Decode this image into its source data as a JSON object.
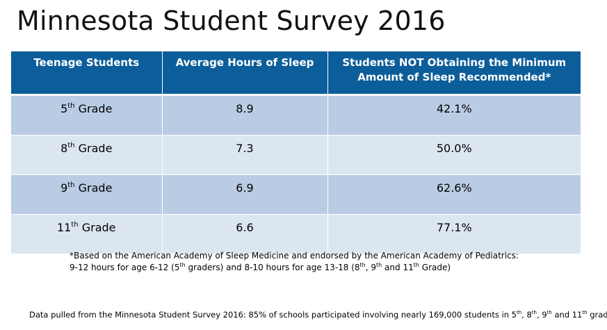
{
  "title": "Minnesota Student Survey 2016",
  "table": {
    "headers": [
      "Teenage Students",
      "Average Hours of Sleep",
      "Students NOT Obtaining the Minimum Amount of Sleep Recommended*"
    ],
    "rows": [
      {
        "grade_num": "5",
        "grade_sup": "th",
        "grade_word": "Grade",
        "hours": "8.9",
        "pct": "42.1%"
      },
      {
        "grade_num": "8",
        "grade_sup": "th",
        "grade_word": "Grade",
        "hours": "7.3",
        "pct": "50.0%"
      },
      {
        "grade_num": "9",
        "grade_sup": "th",
        "grade_word": "Grade",
        "hours": "6.9",
        "pct": "62.6%"
      },
      {
        "grade_num": "11",
        "grade_sup": "th",
        "grade_word": "Grade",
        "hours": "6.6",
        "pct": "77.1%"
      }
    ]
  },
  "footnote": {
    "part1": "*Based on the American Academy of Sleep Medicine and endorsed by the American Academy of Pediatrics: 9-12 hours for age 6-12 (5",
    "sup1": "th",
    "part2": " graders) and 8-10 hours for age 13-18 (8",
    "sup2": "th",
    "part3": ", 9",
    "sup3": "th",
    "part4": " and 11",
    "sup4": "th",
    "part5": " Grade)"
  },
  "source": {
    "part1": "Data pulled from the Minnesota Student Survey 2016: 85% of schools participated involving nearly 169,000 students in 5",
    "sup1": "th",
    "part2": ", 8",
    "sup2": "th",
    "part3": ", 9",
    "sup3": "th",
    "part4": " and 11",
    "sup4": "th",
    "part5": " grade"
  }
}
